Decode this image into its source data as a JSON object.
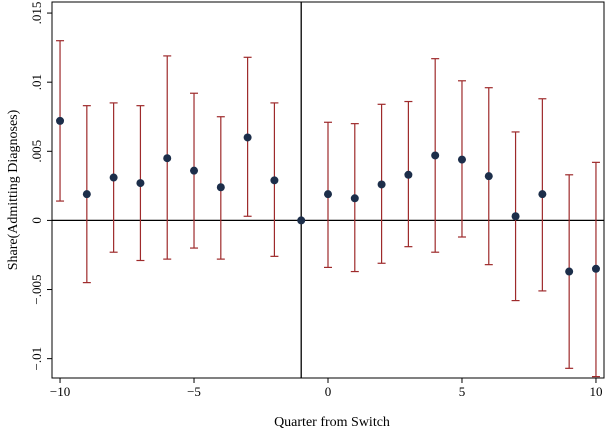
{
  "chart_data": {
    "type": "scatter",
    "subtype": "event-study coefficients with confidence intervals",
    "title": "",
    "xlabel": "Quarter from Switch",
    "ylabel": "Share(Admitting Diagnoses)",
    "xlim": [
      -10.3,
      10.3
    ],
    "ylim": [
      -0.0114,
      0.0158
    ],
    "xticks": [
      -10,
      -5,
      0,
      5,
      10
    ],
    "xtick_labels": [
      "−10",
      "−5",
      "0",
      "5",
      "10"
    ],
    "yticks": [
      -0.01,
      -0.005,
      0,
      0.005,
      0.01,
      0.015
    ],
    "ytick_labels": [
      "−.01",
      "−.005",
      "0",
      ".005",
      ".01",
      ".015"
    ],
    "reference_lines": {
      "vertical_x": -1,
      "horizontal_y": 0
    },
    "grid": false,
    "legend": "none",
    "colors": {
      "point": "#1c2e4a",
      "ci": "#9e2a2b",
      "axis": "#000000"
    },
    "points": [
      {
        "x": -10,
        "y": 0.0072,
        "ci_low": 0.0014,
        "ci_high": 0.013
      },
      {
        "x": -9,
        "y": 0.0019,
        "ci_low": -0.0045,
        "ci_high": 0.0083
      },
      {
        "x": -8,
        "y": 0.0031,
        "ci_low": -0.0023,
        "ci_high": 0.0085
      },
      {
        "x": -7,
        "y": 0.0027,
        "ci_low": -0.0029,
        "ci_high": 0.0083
      },
      {
        "x": -6,
        "y": 0.0045,
        "ci_low": -0.0028,
        "ci_high": 0.0119
      },
      {
        "x": -5,
        "y": 0.0036,
        "ci_low": -0.002,
        "ci_high": 0.0092
      },
      {
        "x": -4,
        "y": 0.0024,
        "ci_low": -0.0028,
        "ci_high": 0.0075
      },
      {
        "x": -3,
        "y": 0.006,
        "ci_low": 0.0003,
        "ci_high": 0.0118
      },
      {
        "x": -2,
        "y": 0.0029,
        "ci_low": -0.0026,
        "ci_high": 0.0085
      },
      {
        "x": -1,
        "y": 0.0,
        "ci_low": null,
        "ci_high": null
      },
      {
        "x": 0,
        "y": 0.0019,
        "ci_low": -0.0034,
        "ci_high": 0.0071
      },
      {
        "x": 1,
        "y": 0.0016,
        "ci_low": -0.0037,
        "ci_high": 0.007
      },
      {
        "x": 2,
        "y": 0.0026,
        "ci_low": -0.0031,
        "ci_high": 0.0084
      },
      {
        "x": 3,
        "y": 0.0033,
        "ci_low": -0.0019,
        "ci_high": 0.0086
      },
      {
        "x": 4,
        "y": 0.0047,
        "ci_low": -0.0023,
        "ci_high": 0.0117
      },
      {
        "x": 5,
        "y": 0.0044,
        "ci_low": -0.0012,
        "ci_high": 0.0101
      },
      {
        "x": 6,
        "y": 0.0032,
        "ci_low": -0.0032,
        "ci_high": 0.0096
      },
      {
        "x": 7,
        "y": 0.0003,
        "ci_low": -0.0058,
        "ci_high": 0.0064
      },
      {
        "x": 8,
        "y": 0.0019,
        "ci_low": -0.0051,
        "ci_high": 0.0088
      },
      {
        "x": 9,
        "y": -0.0037,
        "ci_low": -0.0107,
        "ci_high": 0.0033
      },
      {
        "x": 10,
        "y": -0.0035,
        "ci_low": -0.0113,
        "ci_high": 0.0042
      }
    ]
  }
}
